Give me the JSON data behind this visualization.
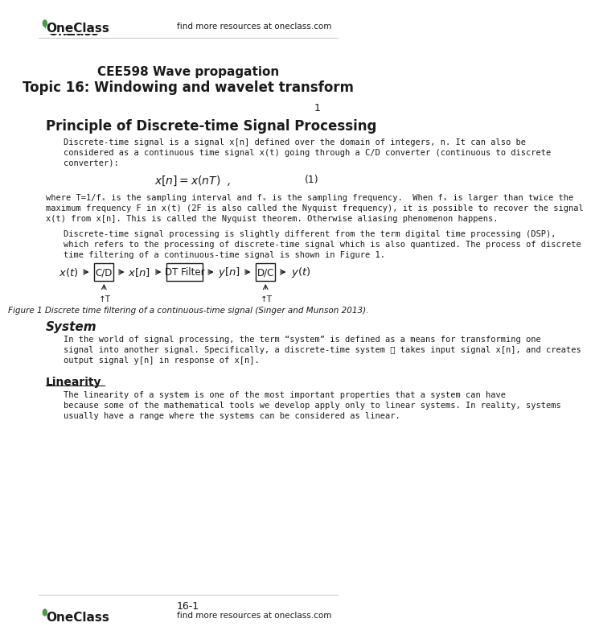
{
  "bg_color": "#ffffff",
  "header_text": "find more resources at oneclass.com",
  "oneclass_color": "#4a9a4a",
  "title1": "CEE598 Wave propagation",
  "title2": "Topic 16: Windowing and wavelet transform",
  "page_num": "1",
  "section1_title": "Principle of Discrete-time Signal Processing",
  "para1": "Discrete-time signal is a signal x[n] defined over the domain of integers, n. It can also be considered as a continuous time signal x(t) going through a C/D converter (continuous to discrete converter):",
  "equation1": "$x[n] = x(nT)$  ,",
  "eq1_num": "(1)",
  "para2": "where T=1/fₛ is the sampling interval and fₛ is the sampling frequency. When fₛ is larger than twice the maximum frequency F in x(t) (2F is also called the Nyquist frequency), it is possible to recover the signal x(t) from x[n]. This is called the Nyquist theorem. Otherwise aliasing phenomenon happens.",
  "para3": "Discrete-time signal processing is slightly different from the term digital time processing (DSP), which refers to the processing of discrete-time signal which is also quantized. The process of discrete time filtering of a continuous-time signal is shown in Figure 1.",
  "fig1_caption": "Figure 1 Discrete time filtering of a continuous-time signal (Singer and Munson 2013).",
  "section2_title": "System",
  "para4": "In the world of signal processing, the term “system” is defined as a means for transforming one signal into another signal. Specifically, a discrete-time system ℋ takes input signal x[n], and creates output signal y[n] in response of x[n].",
  "section3_title": "Linearity",
  "para5": "The linearity of a system is one of the most important properties that a system can have because some of the mathematical tools we develop apply only to linear systems. In reality, systems usually have a range where the systems can be considered as linear.",
  "footer_page": "16-1",
  "text_color": "#1a1a1a",
  "mono_color": "#2a2a2a"
}
